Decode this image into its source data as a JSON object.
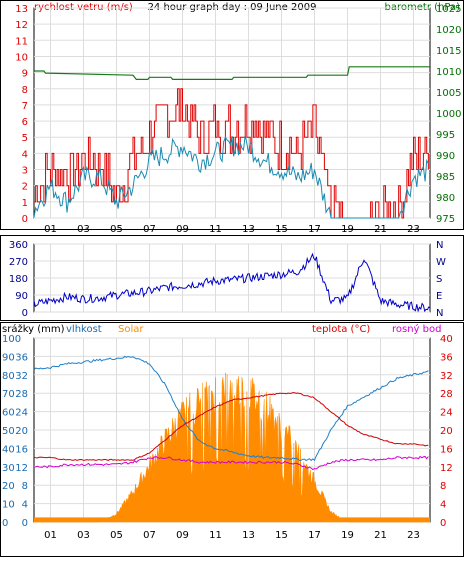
{
  "page": {
    "title": "24 hour graph day : 09 June 2009"
  },
  "colors": {
    "wind": "#e00000",
    "wind_avg": "#1a8ab0",
    "barometer": "#1a7a1a",
    "wind_dir": "#0000c8",
    "humidity": "#2080c8",
    "solar": "#ff8c00",
    "rain": "#ff8c00",
    "temperature": "#d00000",
    "dewpoint": "#d000d0",
    "axis_left_top": "#e00000",
    "axis_right_top": "#007000",
    "axis_dir": "#00008b",
    "axis_bottom_left": "#1a6ab0",
    "axis_bottom_right": "#e00000",
    "grid": "#dddddd"
  },
  "chart_data": [
    {
      "type": "line",
      "title": "24 hour graph day : 09 June 2009",
      "left_label": "rychlost vetru (m/s)",
      "right_label": "barometr (hPa)",
      "x_ticks": [
        "01",
        "03",
        "05",
        "07",
        "09",
        "11",
        "13",
        "15",
        "17",
        "19",
        "21",
        "23"
      ],
      "left_ylim": [
        0,
        13
      ],
      "left_ticks": [
        0,
        1,
        2,
        3,
        4,
        5,
        6,
        7,
        8,
        9,
        10,
        11,
        12,
        13
      ],
      "right_ylim": [
        975,
        1025
      ],
      "right_ticks": [
        975,
        980,
        985,
        990,
        995,
        1000,
        1005,
        1010,
        1015,
        1020,
        1025
      ],
      "x": [
        0,
        1,
        2,
        3,
        4,
        5,
        6,
        7,
        8,
        9,
        10,
        11,
        12,
        13,
        14,
        15,
        16,
        17,
        18,
        19,
        20,
        21,
        22,
        23,
        24
      ],
      "series": [
        {
          "name": "gust",
          "axis": "left",
          "values": [
            1.5,
            3,
            2.5,
            3.5,
            3.5,
            1.5,
            3.5,
            5,
            6.5,
            7,
            5,
            5.5,
            5.5,
            6,
            5.5,
            4.5,
            4,
            5.5,
            0.5,
            0,
            0,
            0.5,
            0.5,
            3.5,
            4
          ]
        },
        {
          "name": "avg",
          "axis": "left",
          "values": [
            0.5,
            2,
            1,
            2.5,
            2.5,
            1,
            2,
            3.5,
            4,
            4.5,
            3.5,
            4,
            4.5,
            4.5,
            3.5,
            3,
            2.5,
            3,
            0,
            0,
            0,
            0,
            0,
            2.5,
            3
          ]
        },
        {
          "name": "barometer",
          "axis": "right",
          "x": [
            0,
            0.6,
            0.7,
            6,
            6.2,
            6.9,
            7,
            8.3,
            8.4,
            8.9,
            9,
            12,
            12.1,
            16.5,
            16.6,
            19,
            19.1,
            24
          ],
          "values": [
            1010,
            1010,
            1009.5,
            1009,
            1008,
            1008,
            1008.5,
            1008.5,
            1008,
            1008,
            1008,
            1008,
            1008.5,
            1008.5,
            1009,
            1009,
            1011,
            1011
          ]
        }
      ]
    },
    {
      "type": "line",
      "left_ticks": [
        0,
        90,
        180,
        270,
        360
      ],
      "left_ylim": [
        0,
        360
      ],
      "right_ticks": [
        "N",
        "E",
        "S",
        "W",
        "N"
      ],
      "x": [
        0,
        1,
        2,
        3,
        4,
        5,
        6,
        7,
        8,
        9,
        10,
        11,
        12,
        13,
        14,
        15,
        16,
        17,
        18,
        19,
        20,
        21,
        22,
        23,
        24
      ],
      "series": [
        {
          "name": "direction",
          "values": [
            40,
            60,
            80,
            70,
            75,
            90,
            100,
            110,
            130,
            140,
            150,
            165,
            170,
            180,
            190,
            200,
            215,
            300,
            60,
            70,
            290,
            60,
            40,
            30,
            20
          ]
        }
      ]
    },
    {
      "type": "line",
      "left_label": "srážky (mm)",
      "labels": [
        "srážky (mm)",
        "vlhkost",
        "Solar",
        "teplota (°C)",
        "rosný bod"
      ],
      "left_ticks_humidity": [
        0,
        10,
        20,
        30,
        40,
        50,
        60,
        70,
        80,
        90,
        100
      ],
      "left_ticks_rain": [
        0,
        4,
        8,
        12,
        16,
        20,
        24,
        28,
        32,
        36
      ],
      "right_ticks": [
        0,
        4,
        8,
        12,
        16,
        20,
        24,
        28,
        32,
        36,
        40
      ],
      "humidity_ylim": [
        0,
        100
      ],
      "temp_ylim": [
        0,
        40
      ],
      "x": [
        0,
        1,
        2,
        3,
        4,
        5,
        6,
        7,
        8,
        9,
        10,
        11,
        12,
        13,
        14,
        15,
        16,
        17,
        18,
        19,
        20,
        21,
        22,
        23,
        24
      ],
      "series": [
        {
          "name": "humidity",
          "axis": "left",
          "values": [
            83,
            84,
            86,
            87,
            88,
            89,
            90,
            86,
            74,
            56,
            44,
            40,
            38,
            36,
            35,
            35,
            34,
            34,
            50,
            63,
            68,
            73,
            78,
            80,
            82
          ]
        },
        {
          "name": "temperature",
          "axis": "right",
          "values": [
            14,
            14,
            13.5,
            13.5,
            13.5,
            13.5,
            13.5,
            15,
            18,
            21,
            23,
            25,
            26.5,
            27,
            27.5,
            28,
            28,
            27,
            24,
            21,
            19,
            18,
            17,
            17,
            16.5
          ]
        },
        {
          "name": "dewpoint",
          "axis": "right",
          "values": [
            12,
            12,
            12.5,
            12.5,
            12.5,
            12.5,
            13,
            14,
            14,
            13.5,
            13,
            13,
            13,
            13,
            13,
            13,
            12.5,
            11.5,
            13,
            13.5,
            13.5,
            13.5,
            14,
            14,
            14
          ]
        },
        {
          "name": "solar",
          "axis": "left",
          "values": [
            0,
            0,
            0,
            0,
            0,
            5,
            18,
            34,
            50,
            64,
            72,
            79,
            80,
            78,
            70,
            58,
            42,
            25,
            6,
            0,
            0,
            0,
            0,
            0,
            0
          ]
        },
        {
          "name": "rain",
          "axis": "left",
          "values": [
            1,
            1,
            1,
            1,
            1,
            1,
            1,
            1,
            1,
            1,
            1,
            1,
            1,
            1,
            1,
            1,
            1,
            1,
            1,
            1,
            1,
            1,
            1,
            1,
            1
          ]
        }
      ]
    }
  ]
}
